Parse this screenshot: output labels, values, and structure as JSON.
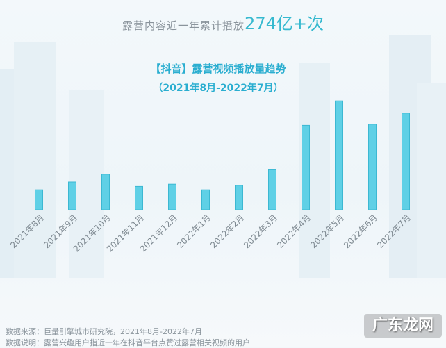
{
  "headline": {
    "prefix": "露营内容近一年累计播放",
    "highlight": "274亿+次"
  },
  "colors": {
    "bar": "#5fd0e6",
    "bar_edge": "#3cb8d2",
    "title": "#2aaed0",
    "highlight": "#35b9cf",
    "text": "#8a949c"
  },
  "chart_data": {
    "type": "bar",
    "title": "【抖音】露营视频播放量趋势",
    "subtitle": "（2021年8月-2022年7月）",
    "xlabel": "",
    "ylabel": "",
    "categories": [
      "2021年8月",
      "2021年9月",
      "2021年10月",
      "2021年11月",
      "2021年12月",
      "2022年1月",
      "2022年2月",
      "2022年3月",
      "2022年4月",
      "2022年5月",
      "2022年6月",
      "2022年7月"
    ],
    "values": [
      18,
      25,
      32,
      21,
      23,
      18,
      22,
      36,
      76,
      98,
      77,
      87
    ],
    "ylim": [
      0,
      100
    ],
    "grid": false,
    "legend": "none"
  },
  "footer": {
    "source": "数据来源：巨量引擎城市研究院，2021年8月-2022年7月",
    "note": "数据说明：露营兴趣用户指近一年在抖音平台点赞过露营相关视频的用户"
  },
  "watermark": "广东龙网"
}
